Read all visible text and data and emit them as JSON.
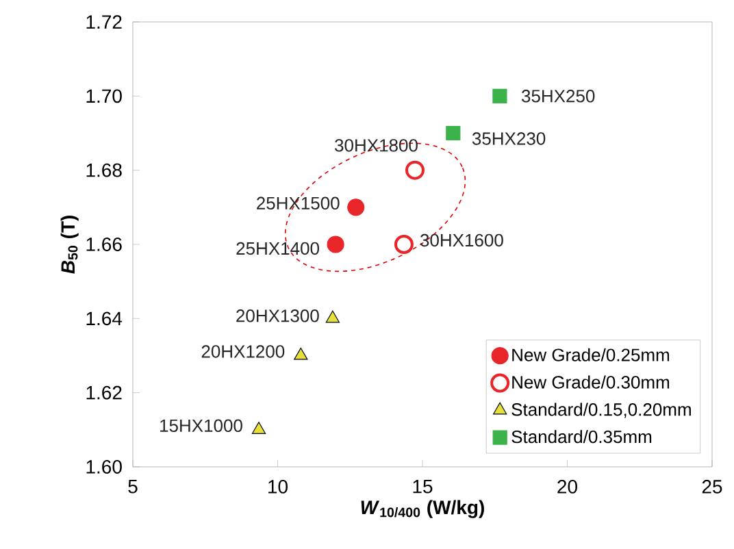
{
  "chart_data": {
    "type": "scatter",
    "xlabel": "*W*$_{10/400}$ (W/kg)",
    "ylabel": "*B*$_{50}$ (T)",
    "xlim": [
      5,
      25
    ],
    "xticks": [
      5,
      10,
      15,
      20,
      25
    ],
    "ylim": [
      1.6,
      1.72
    ],
    "yticks": [
      {
        "value": 1.6,
        "label": "1.60"
      },
      1.62,
      1.64,
      1.66,
      1.68,
      {
        "value": 1.7,
        "label": "1.70"
      },
      1.72
    ],
    "grid": false,
    "legend": "bottom right",
    "series": [
      {
        "name": "New Grade/0.25mm",
        "color": "#e8262a",
        "marker": "circle",
        "x": [
          12.0,
          12.7
        ],
        "values": [
          1.66,
          1.67
        ]
      },
      {
        "name": "New Grade/0.30mm",
        "color": "#e8262a",
        "marker": "circle",
        "x": [
          14.36,
          14.74
        ],
        "values": [
          1.66,
          1.68
        ]
      },
      {
        "name": "Standard/0.15,0.20mm",
        "color": "#e6e03c",
        "marker": "triangle",
        "x": [
          9.35,
          10.8,
          11.9
        ],
        "values": [
          1.61,
          1.63,
          1.64
        ]
      },
      {
        "name": "Standard/0.35mm",
        "color": "#3cb34a",
        "marker": "square",
        "x": [
          16.06,
          17.67
        ],
        "values": [
          1.69,
          1.7
        ]
      }
    ],
    "annotations": [
      {
        "text": "25HX1400",
        "x": 12.0,
        "y": 1.66
      },
      {
        "text": "25HX1500",
        "x": 12.7,
        "y": 1.67
      },
      {
        "text": "30HX1600",
        "x": 14.36,
        "y": 1.66
      },
      {
        "text": "30HX1800",
        "x": 14.74,
        "y": 1.68
      },
      {
        "text": "15HX1000",
        "x": 9.35,
        "y": 1.61
      },
      {
        "text": "20HX1200",
        "x": 10.8,
        "y": 1.63
      },
      {
        "text": "20HX1300",
        "x": 11.9,
        "y": 1.64
      },
      {
        "text": "35HX230",
        "x": 16.06,
        "y": 1.69
      },
      {
        "text": "35HX250",
        "x": 17.67,
        "y": 1.7
      }
    ]
  }
}
